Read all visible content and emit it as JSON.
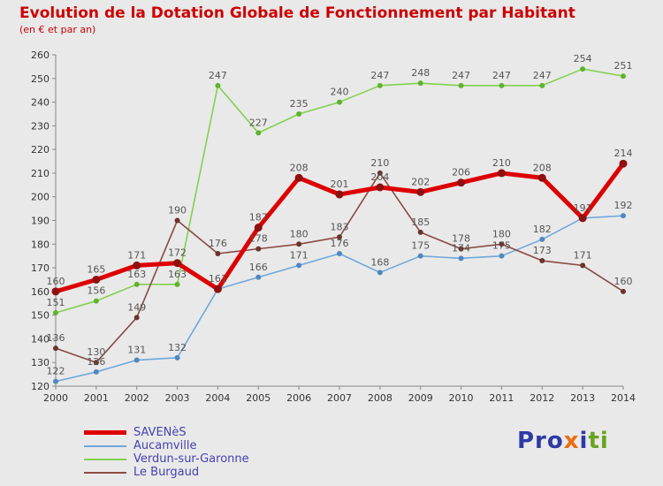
{
  "title": {
    "text": "Evolution de la Dotation Globale de Fonctionnement par Habitant",
    "subtitle": "(en € et par an)"
  },
  "colors": {
    "background": "#e9e9e9",
    "title": "#cc0000",
    "axis": "#888888",
    "tick_text": "#333333",
    "point_label": "#555555",
    "legend_text": "#4343b2"
  },
  "chart_data": {
    "type": "line",
    "title": "Evolution de la Dotation Globale de Fonctionnement par Habitant",
    "subtitle": "(en € et par an)",
    "x": [
      2000,
      2001,
      2002,
      2003,
      2004,
      2005,
      2006,
      2007,
      2008,
      2009,
      2010,
      2011,
      2012,
      2013,
      2014
    ],
    "ylim": [
      120,
      260
    ],
    "ytick_step": 10,
    "grid": false,
    "legend_position": "bottom-left",
    "series": [
      {
        "name": "SAVENèS",
        "color": "#dd0000",
        "dot_color": "#8f1010",
        "line_width": 5,
        "dot_radius": 4.5,
        "values": [
          160,
          165,
          171,
          172,
          161,
          187,
          208,
          201,
          204,
          202,
          206,
          210,
          208,
          191,
          214
        ],
        "labels": [
          "160",
          "165",
          "171",
          "172",
          "161",
          "187",
          "208",
          "201",
          "204",
          "202",
          "206",
          "210",
          "208",
          "191",
          "214"
        ]
      },
      {
        "name": "Aucamville",
        "color": "#6fa8dc",
        "dot_color": "#4f88c0",
        "line_width": 1.6,
        "dot_radius": 3,
        "values": [
          122,
          126,
          131,
          132,
          161,
          166,
          171,
          176,
          168,
          175,
          174,
          175,
          182,
          191,
          192
        ],
        "labels": [
          "122",
          "126",
          "131",
          "132",
          null,
          "166",
          "171",
          "176",
          "168",
          "175",
          "174",
          "175",
          "182",
          null,
          "192"
        ]
      },
      {
        "name": "Verdun-sur-Garonne",
        "color": "#82d14f",
        "dot_color": "#5fb32c",
        "line_width": 1.6,
        "dot_radius": 3,
        "values": [
          151,
          156,
          163,
          163,
          247,
          227,
          235,
          240,
          247,
          248,
          247,
          247,
          247,
          254,
          251
        ],
        "labels": [
          "151",
          "156",
          "163",
          "163",
          "247",
          "227",
          "235",
          "240",
          "247",
          "248",
          "247",
          "247",
          "247",
          "254",
          "251"
        ]
      },
      {
        "name": "Le Burgaud",
        "color": "#8a4a42",
        "dot_color": "#6b332c",
        "line_width": 1.6,
        "dot_radius": 3,
        "values": [
          136,
          130,
          149,
          190,
          176,
          178,
          180,
          183,
          210,
          185,
          178,
          180,
          173,
          171,
          160
        ],
        "labels": [
          "136",
          "130",
          "149",
          "190",
          "176",
          "178",
          "180",
          "183",
          "210",
          "185",
          "178",
          "180",
          "173",
          "171",
          "160"
        ]
      }
    ]
  },
  "logo": {
    "parts": [
      {
        "text": "Pro",
        "color": "#2d3aa5"
      },
      {
        "text": "x",
        "color": "#ee6b14"
      },
      {
        "text": "i",
        "color": "#2d3aa5"
      },
      {
        "text": "ti",
        "color": "#67a51e"
      }
    ]
  }
}
